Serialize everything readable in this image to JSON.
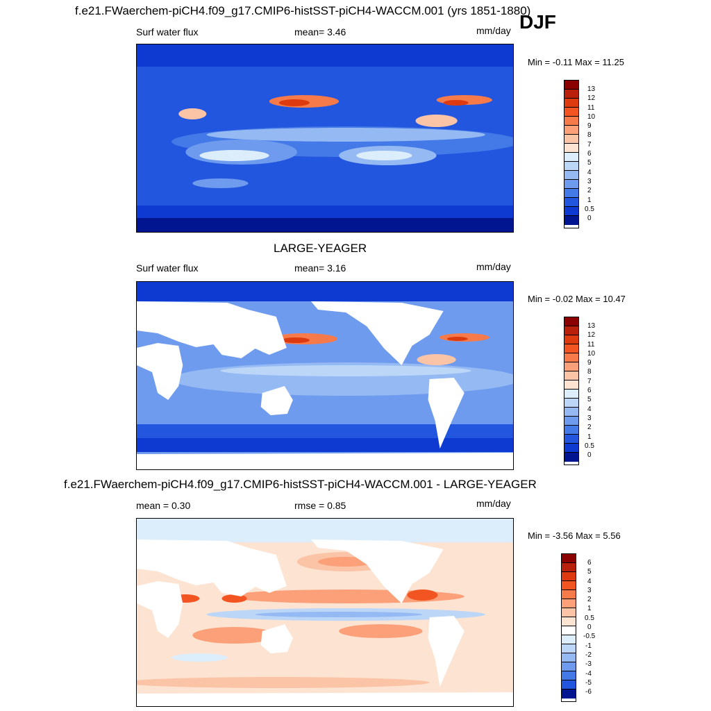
{
  "figure": {
    "title": "f.e21.FWaerchem-piCH4.f09_g17.CMIP6-histSST-piCH4-WACCM.001 (yrs 1851-1880)",
    "season": "DJF"
  },
  "panels": [
    {
      "id": "model",
      "left_label": "Surf water flux",
      "center_label": "mean=   3.46",
      "units": "mm/day",
      "range_text": "Min =  -0.11 Max =  11.25",
      "land_masked": false,
      "colorbar": {
        "levels": [
          "13",
          "12",
          "11",
          "10",
          "9",
          "8",
          "7",
          "6",
          "5",
          "4",
          "3",
          "2",
          "1",
          "0.5",
          "0"
        ],
        "colors": [
          "#8b0000",
          "#b8200c",
          "#dd3a10",
          "#f25522",
          "#f77b4a",
          "#fba078",
          "#fcc4a6",
          "#fde4d2",
          "#dceefc",
          "#bcd6f8",
          "#95b9f3",
          "#6e9bee",
          "#4479e8",
          "#2356df",
          "#0f3ad2",
          "#00158f"
        ]
      }
    },
    {
      "id": "obs",
      "title": "LARGE-YEAGER",
      "left_label": "Surf water flux",
      "center_label": "mean=   3.16",
      "units": "mm/day",
      "range_text": "Min =  -0.02 Max =  10.47",
      "land_masked": true,
      "colorbar": {
        "levels": [
          "13",
          "12",
          "11",
          "10",
          "9",
          "8",
          "7",
          "6",
          "5",
          "4",
          "3",
          "2",
          "1",
          "0.5",
          "0"
        ],
        "colors": [
          "#8b0000",
          "#b8200c",
          "#dd3a10",
          "#f25522",
          "#f77b4a",
          "#fba078",
          "#fcc4a6",
          "#fde4d2",
          "#dceefc",
          "#bcd6f8",
          "#95b9f3",
          "#6e9bee",
          "#4479e8",
          "#2356df",
          "#0f3ad2",
          "#00158f"
        ]
      }
    },
    {
      "id": "diff",
      "title": "f.e21.FWaerchem-piCH4.f09_g17.CMIP6-histSST-piCH4-WACCM.001 - LARGE-YEAGER",
      "left_label": "mean =   0.30",
      "center_label": "rmse =   0.85",
      "units": "mm/day",
      "range_text": "Min =  -3.56 Max =   5.56",
      "land_masked": true,
      "colorbar": {
        "levels": [
          "6",
          "5",
          "4",
          "3",
          "2",
          "1",
          "0.5",
          "0",
          "-0.5",
          "-1",
          "-2",
          "-3",
          "-4",
          "-5",
          "-6"
        ],
        "colors": [
          "#8b0000",
          "#b8200c",
          "#dd3a10",
          "#f25522",
          "#f77b4a",
          "#fba078",
          "#fcc4a6",
          "#fde4d2",
          "#ffffff",
          "#dceefc",
          "#bcd6f8",
          "#95b9f3",
          "#6e9bee",
          "#4479e8",
          "#2356df",
          "#00158f"
        ]
      }
    }
  ]
}
